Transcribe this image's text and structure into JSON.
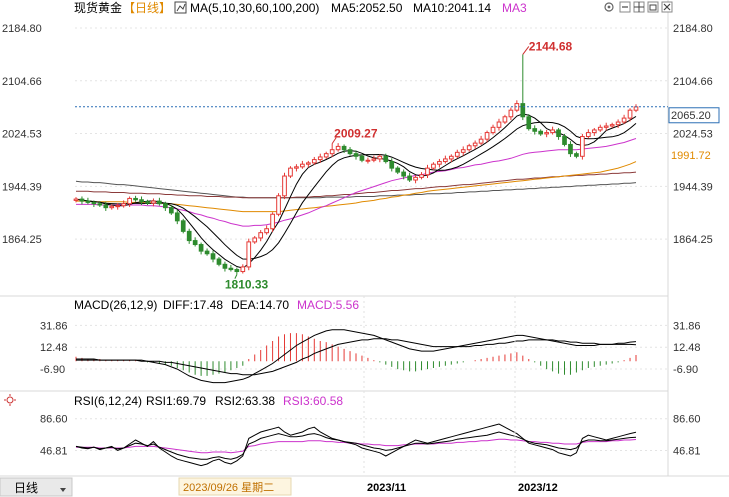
{
  "header": {
    "instrument": "现货黄金",
    "period_tag": "【日线】",
    "ma_label": "MA(5,10,30,60,100,200)",
    "ma5": "MA5:2052.50",
    "ma10": "MA10:2041.14",
    "ma3": "MA3"
  },
  "toolbar_icons": [
    "settings-icon",
    "minus-icon",
    "grid-icon",
    "restore-icon",
    "close-icon"
  ],
  "macd_header": {
    "label": "MACD(26,12,9)",
    "diff": "DIFF:17.48",
    "dea": "DEA:14.70",
    "macd": "MACD:5.56"
  },
  "rsi_header": {
    "label": "RSI(6,12,24)",
    "rsi1": "RSI1:69.79",
    "rsi2": "RSI2:63.38",
    "rsi3": "RSI3:60.58"
  },
  "footer": {
    "period_button": "日线",
    "cursor_date": "2023/09/26 星期二",
    "months": [
      "2023/11",
      "2023/12"
    ]
  },
  "price_tags": {
    "last": "2065.20",
    "ma_long": "1991.72"
  },
  "annotations": {
    "high": "2144.68",
    "low": "1810.33",
    "local_high": "2009.27"
  },
  "colors": {
    "up": "#e53935",
    "down": "#2e8b2e",
    "ma5": "#000000",
    "ma10": "#000000",
    "ma30": "#cc33cc",
    "ma60": "#e08a00",
    "ma100": "#8b3a3a",
    "ma200": "#555555",
    "diff": "#000000",
    "dea": "#000000",
    "rsi3": "#cc33cc",
    "accent": "#3355cc"
  },
  "chart_data": [
    {
      "type": "candlestick",
      "panel": "price",
      "yticks": [
        2184.8,
        2104.66,
        2024.53,
        1944.39,
        1864.25
      ],
      "ylim": [
        1790,
        2200
      ],
      "last_price": 2065.2,
      "ma_long_value": 1991.72,
      "closes": [
        1925,
        1922,
        1920,
        1918,
        1916,
        1912,
        1914,
        1915,
        1918,
        1926,
        1924,
        1921,
        1919,
        1922,
        1918,
        1912,
        1904,
        1892,
        1876,
        1862,
        1856,
        1846,
        1842,
        1834,
        1826,
        1820,
        1818,
        1815,
        1822,
        1860,
        1866,
        1874,
        1880,
        1902,
        1930,
        1960,
        1972,
        1974,
        1978,
        1980,
        1985,
        1989,
        1994,
        2000,
        2005,
        2000,
        1994,
        1990,
        1984,
        1984,
        1986,
        1990,
        1982,
        1972,
        1966,
        1960,
        1954,
        1958,
        1962,
        1972,
        1978,
        1982,
        1986,
        1990,
        1996,
        2000,
        2006,
        2010,
        2016,
        2026,
        2034,
        2042,
        2050,
        2060,
        2070,
        2050,
        2032,
        2028,
        2024,
        2026,
        2030,
        2020,
        2008,
        1994,
        1990,
        2020,
        2026,
        2030,
        2034,
        2036,
        2038,
        2042,
        2048,
        2060,
        2065
      ],
      "ma30": [
        1917,
        1917,
        1917,
        1917,
        1916,
        1916,
        1916,
        1916,
        1916,
        1916,
        1916,
        1916,
        1915,
        1915,
        1914,
        1913,
        1912,
        1910,
        1908,
        1906,
        1903,
        1901,
        1898,
        1896,
        1893,
        1891,
        1888,
        1886,
        1884,
        1884,
        1885,
        1885,
        1886,
        1888,
        1890,
        1893,
        1895,
        1898,
        1901,
        1904,
        1908,
        1912,
        1915,
        1919,
        1923,
        1927,
        1931,
        1935,
        1938,
        1941,
        1944,
        1947,
        1950,
        1953,
        1955,
        1957,
        1959,
        1961,
        1962,
        1964,
        1966,
        1967,
        1968,
        1970,
        1972,
        1973,
        1975,
        1977,
        1978,
        1980,
        1982,
        1983,
        1985,
        1987,
        1990,
        1993,
        1995,
        1996,
        1997,
        1998,
        1999,
        2000,
        2000,
        2000,
        2000,
        2001,
        2002,
        2003,
        2004,
        2005,
        2007,
        2009,
        2011,
        2014,
        2017
      ],
      "ma60": [
        1922,
        1922,
        1922,
        1921,
        1921,
        1921,
        1921,
        1921,
        1921,
        1920,
        1920,
        1920,
        1920,
        1919,
        1919,
        1918,
        1918,
        1917,
        1916,
        1915,
        1914,
        1913,
        1912,
        1911,
        1910,
        1909,
        1908,
        1907,
        1906,
        1906,
        1906,
        1906,
        1906,
        1906,
        1906,
        1907,
        1908,
        1909,
        1910,
        1911,
        1912,
        1913,
        1914,
        1915,
        1916,
        1917,
        1918,
        1919,
        1921,
        1922,
        1923,
        1925,
        1926,
        1928,
        1929,
        1931,
        1932,
        1934,
        1935,
        1937,
        1938,
        1939,
        1940,
        1941,
        1942,
        1943,
        1944,
        1945,
        1946,
        1947,
        1948,
        1949,
        1950,
        1951,
        1952,
        1953,
        1954,
        1955,
        1956,
        1957,
        1958,
        1959,
        1960,
        1961,
        1962,
        1963,
        1964,
        1965,
        1966,
        1968,
        1970,
        1972,
        1975,
        1978,
        1982
      ],
      "ma100": [
        1937,
        1937,
        1937,
        1936,
        1936,
        1936,
        1935,
        1935,
        1935,
        1934,
        1934,
        1934,
        1933,
        1933,
        1933,
        1932,
        1932,
        1931,
        1931,
        1930,
        1930,
        1930,
        1929,
        1929,
        1929,
        1928,
        1928,
        1928,
        1927,
        1927,
        1927,
        1927,
        1927,
        1927,
        1927,
        1927,
        1927,
        1928,
        1928,
        1928,
        1929,
        1929,
        1930,
        1930,
        1931,
        1932,
        1932,
        1933,
        1934,
        1935,
        1935,
        1936,
        1937,
        1938,
        1938,
        1939,
        1940,
        1941,
        1941,
        1942,
        1943,
        1944,
        1944,
        1945,
        1946,
        1947,
        1947,
        1948,
        1949,
        1950,
        1951,
        1952,
        1953,
        1954,
        1955,
        1955,
        1956,
        1957,
        1957,
        1958,
        1959,
        1959,
        1960,
        1960,
        1961,
        1961,
        1962,
        1962,
        1963,
        1963,
        1964,
        1964,
        1965,
        1965,
        1966
      ],
      "ma200": [
        1952,
        1951,
        1951,
        1950,
        1950,
        1949,
        1948,
        1947,
        1947,
        1946,
        1945,
        1944,
        1943,
        1942,
        1941,
        1940,
        1939,
        1938,
        1937,
        1936,
        1935,
        1934,
        1933,
        1932,
        1931,
        1930,
        1929,
        1928,
        1928,
        1927,
        1927,
        1927,
        1927,
        1927,
        1927,
        1927,
        1927,
        1927,
        1927,
        1927,
        1927,
        1927,
        1928,
        1928,
        1928,
        1928,
        1928,
        1929,
        1929,
        1929,
        1929,
        1930,
        1930,
        1930,
        1931,
        1931,
        1931,
        1932,
        1932,
        1933,
        1933,
        1933,
        1934,
        1934,
        1935,
        1935,
        1936,
        1936,
        1937,
        1937,
        1938,
        1938,
        1939,
        1939,
        1940,
        1940,
        1941,
        1941,
        1942,
        1942,
        1943,
        1943,
        1944,
        1944,
        1945,
        1945,
        1946,
        1946,
        1947,
        1947,
        1948,
        1948,
        1949,
        1949,
        1950
      ]
    },
    {
      "type": "bar",
      "panel": "macd",
      "yticks": [
        31.86,
        12.48,
        -6.9
      ],
      "ylim": [
        -22,
        42
      ],
      "macd_values": [
        4,
        3,
        2,
        2,
        2,
        1,
        1,
        1,
        1,
        1,
        1,
        0,
        -1,
        -1,
        -2,
        -3,
        -4,
        -6,
        -8,
        -10,
        -12,
        -13,
        -13,
        -12,
        -11,
        -10,
        -8,
        -6,
        -4,
        2,
        6,
        10,
        14,
        18,
        22,
        24,
        25,
        25,
        24,
        22,
        20,
        18,
        17,
        15,
        13,
        11,
        9,
        7,
        5,
        3,
        1,
        -1,
        -3,
        -5,
        -7,
        -8,
        -9,
        -9,
        -8,
        -7,
        -6,
        -5,
        -4,
        -3,
        -2,
        -1,
        0,
        1,
        2,
        3,
        4,
        5,
        6,
        7,
        8,
        5,
        2,
        -1,
        -4,
        -7,
        -9,
        -11,
        -12,
        -12,
        -10,
        -8,
        -6,
        -5,
        -4,
        -3,
        -2,
        -1,
        1,
        3,
        5.56
      ],
      "diff": [
        2,
        2,
        2,
        2,
        1,
        1,
        1,
        1,
        1,
        1,
        1,
        0,
        0,
        -1,
        -2,
        -3,
        -5,
        -7,
        -10,
        -13,
        -15,
        -17,
        -18,
        -19,
        -19,
        -19,
        -18,
        -17,
        -16,
        -14,
        -11,
        -8,
        -5,
        -2,
        2,
        6,
        10,
        14,
        17,
        20,
        23,
        25,
        27,
        28,
        28,
        28,
        27,
        26,
        25,
        24,
        23,
        21,
        19,
        17,
        15,
        13,
        11,
        10,
        9,
        9,
        9,
        10,
        11,
        12,
        13,
        14,
        15,
        16,
        17,
        18,
        19,
        20,
        21,
        22,
        23,
        23,
        22,
        21,
        20,
        19,
        18,
        17,
        16,
        15,
        14,
        14,
        14,
        14,
        15,
        15,
        15,
        16,
        16,
        17,
        17.48
      ],
      "dea": [
        1,
        1,
        1,
        1,
        1,
        1,
        1,
        1,
        1,
        1,
        1,
        1,
        0,
        0,
        0,
        -1,
        -1,
        -2,
        -3,
        -4,
        -5,
        -6,
        -7,
        -8,
        -9,
        -10,
        -11,
        -11,
        -12,
        -12,
        -12,
        -11,
        -10,
        -9,
        -7,
        -5,
        -3,
        -1,
        2,
        4,
        7,
        9,
        11,
        13,
        15,
        16,
        17,
        18,
        19,
        19,
        20,
        20,
        20,
        19,
        19,
        18,
        17,
        16,
        15,
        14,
        13,
        13,
        13,
        13,
        13,
        13,
        13,
        14,
        14,
        15,
        15,
        16,
        16,
        17,
        18,
        18,
        19,
        19,
        19,
        19,
        19,
        18,
        18,
        17,
        17,
        16,
        16,
        16,
        15,
        15,
        15,
        15,
        15,
        15,
        14.7
      ]
    },
    {
      "type": "line",
      "panel": "rsi",
      "yticks": [
        86.6,
        46.81
      ],
      "ylim": [
        20,
        100
      ],
      "rsi1": [
        52,
        50,
        49,
        51,
        48,
        50,
        52,
        47,
        50,
        55,
        60,
        56,
        52,
        58,
        50,
        45,
        40,
        36,
        34,
        32,
        30,
        28,
        30,
        34,
        36,
        32,
        30,
        34,
        40,
        62,
        66,
        70,
        72,
        74,
        76,
        70,
        66,
        68,
        70,
        74,
        76,
        70,
        66,
        62,
        60,
        58,
        56,
        54,
        50,
        48,
        46,
        44,
        40,
        44,
        48,
        52,
        56,
        60,
        58,
        56,
        58,
        60,
        62,
        64,
        66,
        68,
        70,
        72,
        74,
        76,
        78,
        80,
        76,
        72,
        68,
        62,
        56,
        54,
        52,
        50,
        48,
        44,
        42,
        40,
        44,
        62,
        66,
        64,
        62,
        60,
        62,
        64,
        66,
        68,
        69.79
      ],
      "rsi2": [
        52,
        51,
        50,
        51,
        49,
        50,
        51,
        49,
        50,
        53,
        56,
        55,
        53,
        55,
        51,
        48,
        45,
        42,
        40,
        38,
        37,
        36,
        36,
        38,
        39,
        37,
        36,
        38,
        42,
        55,
        58,
        62,
        64,
        66,
        68,
        66,
        64,
        64,
        65,
        67,
        68,
        66,
        63,
        61,
        60,
        58,
        57,
        56,
        54,
        52,
        50,
        49,
        47,
        48,
        50,
        52,
        54,
        56,
        56,
        55,
        56,
        57,
        58,
        59,
        61,
        62,
        63,
        64,
        65,
        66,
        68,
        70,
        68,
        66,
        64,
        61,
        58,
        56,
        55,
        54,
        52,
        50,
        49,
        48,
        50,
        58,
        60,
        60,
        59,
        59,
        60,
        61,
        62,
        63,
        63.38
      ],
      "rsi3": [
        51,
        51,
        51,
        51,
        50,
        50,
        50,
        50,
        50,
        51,
        52,
        52,
        52,
        52,
        51,
        50,
        49,
        48,
        47,
        46,
        45,
        44,
        44,
        45,
        45,
        45,
        44,
        45,
        46,
        52,
        53,
        55,
        56,
        57,
        58,
        58,
        58,
        58,
        58,
        59,
        59,
        59,
        58,
        58,
        57,
        57,
        56,
        56,
        55,
        55,
        54,
        54,
        53,
        53,
        53,
        54,
        54,
        55,
        55,
        55,
        55,
        56,
        56,
        56,
        57,
        57,
        58,
        58,
        59,
        59,
        60,
        61,
        61,
        60,
        60,
        59,
        58,
        58,
        57,
        57,
        56,
        56,
        55,
        55,
        55,
        57,
        58,
        58,
        58,
        58,
        59,
        59,
        60,
        60,
        60.58
      ]
    }
  ]
}
